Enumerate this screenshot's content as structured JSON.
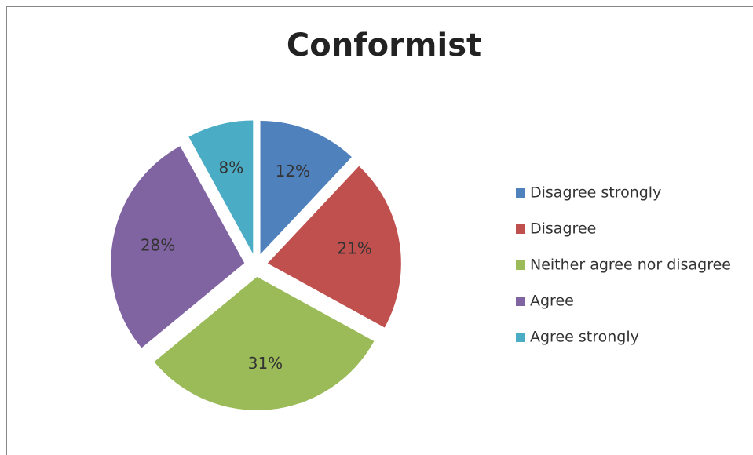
{
  "chart_data": {
    "type": "pie",
    "title": "Conformist",
    "categories": [
      "Disagree strongly",
      "Disagree",
      "Neither agree nor disagree",
      "Agree",
      "Agree strongly"
    ],
    "values": [
      12,
      21,
      31,
      28,
      8
    ],
    "value_labels": [
      "12%",
      "21%",
      "31%",
      "28%",
      "8%"
    ],
    "colors": [
      "#4f81bd",
      "#c0504d",
      "#9bbb59",
      "#8064a2",
      "#4bacc6"
    ],
    "legend": "right"
  }
}
